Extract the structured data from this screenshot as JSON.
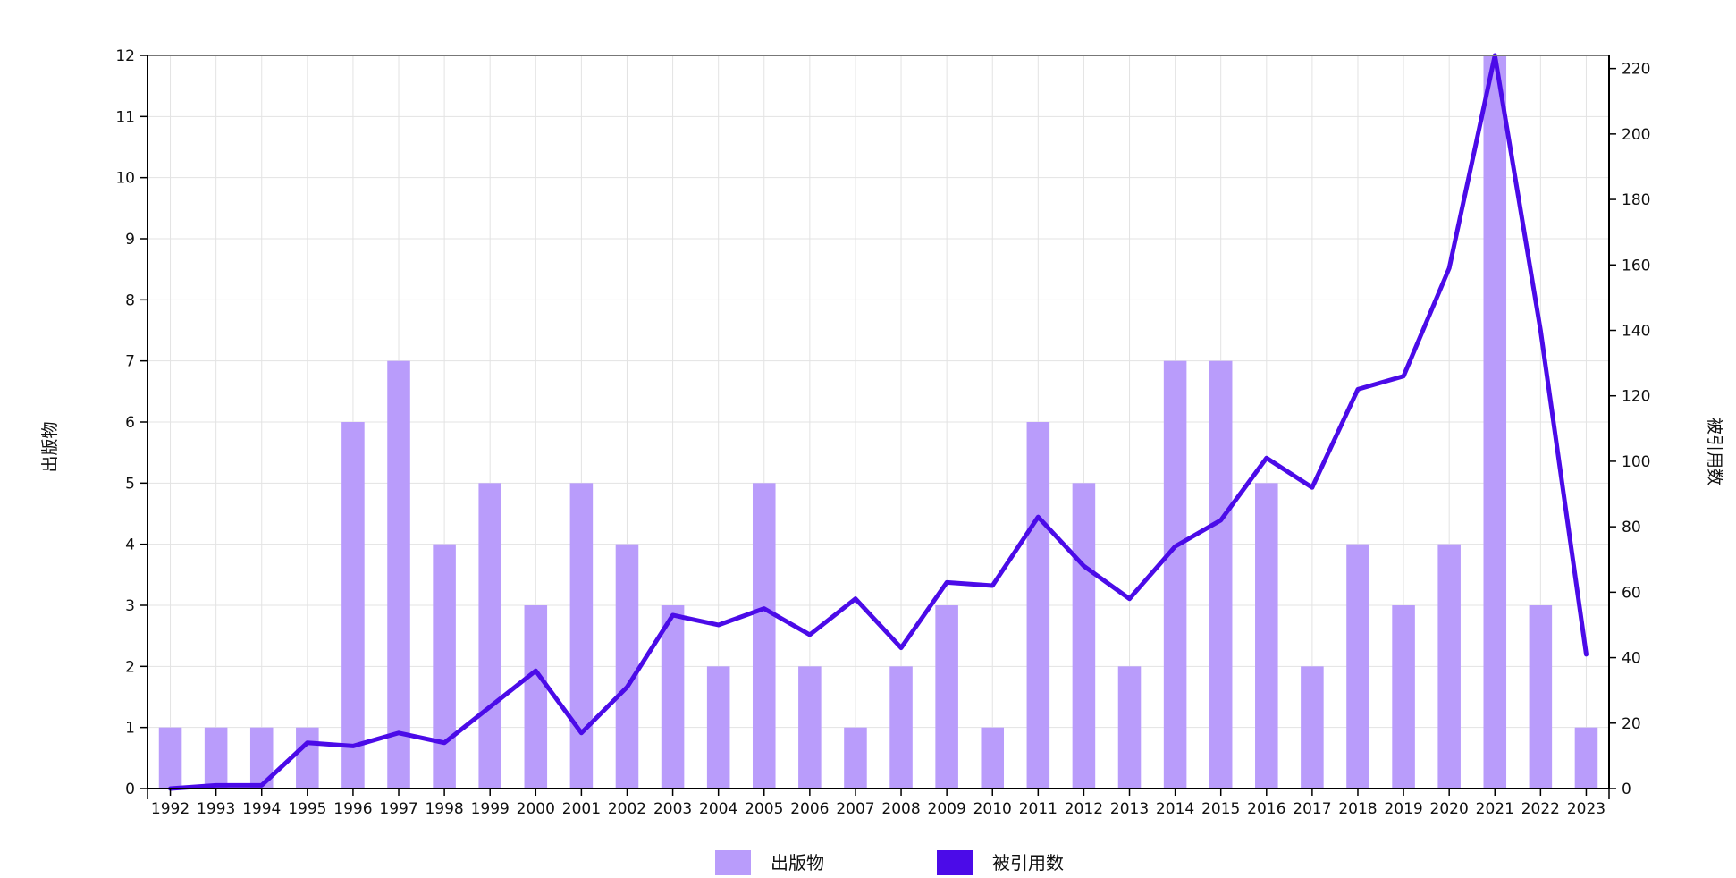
{
  "chart_data": {
    "type": "bar+line",
    "title": "",
    "x": [
      1992,
      1993,
      1994,
      1995,
      1996,
      1997,
      1998,
      1999,
      2000,
      2001,
      2002,
      2003,
      2004,
      2005,
      2006,
      2007,
      2008,
      2009,
      2010,
      2011,
      2012,
      2013,
      2014,
      2015,
      2016,
      2017,
      2018,
      2019,
      2020,
      2021,
      2022,
      2023
    ],
    "series": [
      {
        "name": "出版物",
        "type": "bar",
        "axis": "left",
        "color": "#b99cfb",
        "values": [
          1,
          1,
          1,
          1,
          6,
          7,
          4,
          5,
          3,
          5,
          4,
          3,
          2,
          5,
          2,
          1,
          2,
          3,
          1,
          6,
          5,
          2,
          7,
          7,
          5,
          2,
          4,
          3,
          4,
          12,
          3,
          1
        ]
      },
      {
        "name": "被引用数",
        "type": "line",
        "axis": "right",
        "color": "#4b0be8",
        "values": [
          0,
          1,
          1,
          14,
          13,
          17,
          14,
          25,
          36,
          17,
          31,
          53,
          50,
          55,
          47,
          58,
          43,
          63,
          62,
          83,
          68,
          58,
          74,
          82,
          101,
          92,
          122,
          126,
          159,
          224,
          140,
          41
        ]
      }
    ],
    "ylabel_left": "出版物",
    "ylabel_right": "被引用数",
    "ylim_left": [
      0,
      12
    ],
    "ylim_right": [
      0,
      224
    ],
    "yticks_left": [
      0,
      1,
      2,
      3,
      4,
      5,
      6,
      7,
      8,
      9,
      10,
      11,
      12
    ],
    "yticks_right": [
      0,
      20,
      40,
      60,
      80,
      100,
      120,
      140,
      160,
      180,
      200,
      220
    ],
    "grid": true,
    "legend": "bottom-center"
  }
}
